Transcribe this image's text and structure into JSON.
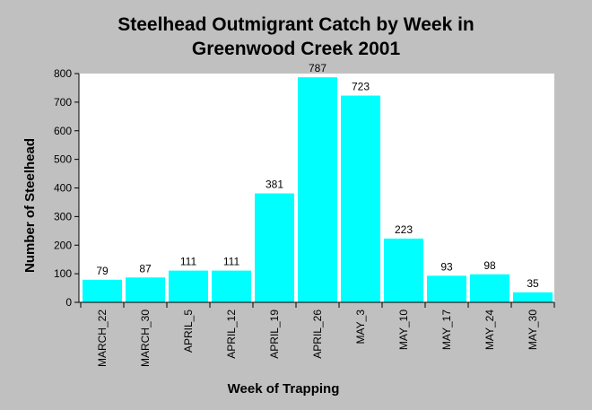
{
  "chart_data": {
    "type": "bar",
    "title": [
      "Steelhead Outmigrant Catch by Week in",
      "Greenwood Creek 2001"
    ],
    "xlabel": "Week of Trapping",
    "ylabel": "Number of Steelhead",
    "ylim": [
      0,
      800
    ],
    "yticks": [
      0,
      100,
      200,
      300,
      400,
      500,
      600,
      700,
      800
    ],
    "categories": [
      "MARCH_22",
      "MARCH_30",
      "APRIL_5",
      "APRIL_12",
      "APRIL_19",
      "APRIL_26",
      "MAY_3",
      "MAY_10",
      "MAY_17",
      "MAY_24",
      "MAY_30"
    ],
    "values": [
      79,
      87,
      111,
      111,
      381,
      787,
      723,
      223,
      93,
      98,
      35
    ],
    "bar_color": "#00ffff",
    "plot_background": "#ffffff",
    "page_background": "#c0c0c0",
    "grid": false,
    "legend": "none"
  }
}
